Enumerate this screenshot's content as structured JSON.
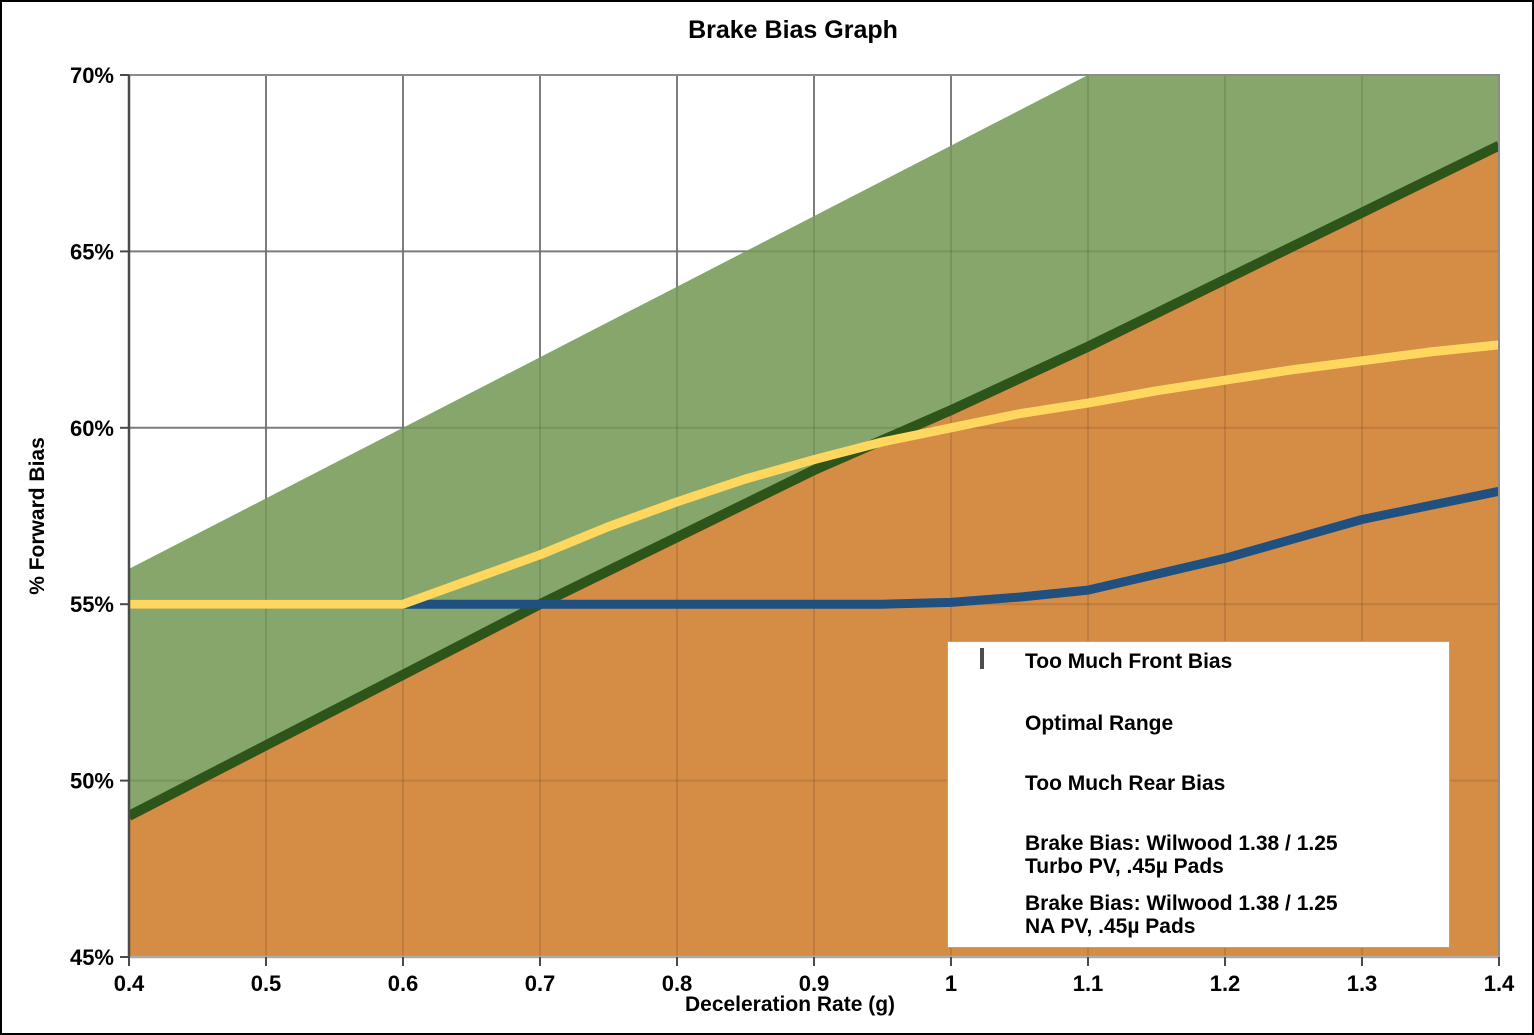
{
  "title": "Brake Bias Graph",
  "chart_data": {
    "type": "area",
    "title": "Brake Bias Graph",
    "xlabel": "Deceleration Rate (g)",
    "ylabel": "% Forward Bias",
    "xlim": [
      0.4,
      1.4
    ],
    "ylim": [
      45,
      70
    ],
    "grid": true,
    "legend_position": "bottom-right",
    "x_ticks": [
      0.4,
      0.5,
      0.6,
      0.7,
      0.8,
      0.9,
      1.0,
      1.1,
      1.2,
      1.3,
      1.4
    ],
    "x_tick_labels": [
      "0.4",
      "0.5",
      "0.6",
      "0.7",
      "0.8",
      "0.9",
      "1",
      "1.1",
      "1.2",
      "1.3",
      "1.4"
    ],
    "y_ticks": [
      45,
      50,
      55,
      60,
      65,
      70
    ],
    "y_tick_labels": [
      "45%",
      "50%",
      "55%",
      "60%",
      "65%",
      "70%"
    ],
    "area_x": [
      0.4,
      0.5,
      0.6,
      0.7,
      0.8,
      0.9,
      1.0,
      1.1,
      1.2,
      1.3,
      1.4
    ],
    "areas": {
      "too_much_front_bias_region": "above optimal_upper (white)",
      "optimal_upper": [
        56.0,
        58.0,
        60.0,
        62.0,
        64.0,
        66.0,
        68.0,
        70.0,
        70.0,
        70.0,
        70.0
      ],
      "optimal_lower": [
        49.0,
        51.0,
        53.0,
        55.0,
        56.9,
        58.8,
        60.5,
        62.3,
        64.2,
        66.1,
        68.0
      ],
      "too_much_rear_bias_region": "below optimal_lower (orange)"
    },
    "series": [
      {
        "name": "Brake Bias: Wilwood 1.38 / 1.25 Turbo PV, .45µ Pads",
        "color": "#1F5080",
        "x": [
          0.4,
          0.5,
          0.6,
          0.7,
          0.8,
          0.9,
          0.95,
          1.0,
          1.05,
          1.1,
          1.15,
          1.2,
          1.25,
          1.3,
          1.35,
          1.4
        ],
        "values": [
          55.0,
          55.0,
          55.0,
          55.0,
          55.0,
          55.0,
          55.0,
          55.05,
          55.2,
          55.4,
          55.85,
          56.3,
          56.85,
          57.4,
          57.8,
          58.2
        ]
      },
      {
        "name": "Brake Bias: Wilwood 1.38 / 1.25 NA PV, .45µ Pads",
        "color": "#FFD75E",
        "x": [
          0.4,
          0.5,
          0.6,
          0.65,
          0.7,
          0.75,
          0.8,
          0.85,
          0.9,
          0.95,
          1.0,
          1.05,
          1.1,
          1.15,
          1.2,
          1.25,
          1.3,
          1.35,
          1.4
        ],
        "values": [
          55.0,
          55.0,
          55.0,
          55.7,
          56.4,
          57.2,
          57.9,
          58.55,
          59.1,
          59.6,
          60.0,
          60.4,
          60.7,
          61.05,
          61.35,
          61.65,
          61.9,
          62.15,
          62.35
        ]
      }
    ]
  },
  "colors": {
    "optimal_area_fill": "#86A66B",
    "rear_bias_area_fill": "#D58C44",
    "optimal_boundary_line": "#2E5519",
    "gridline": "#8C8C8C",
    "axis_line": "#4A4A4A",
    "bottom_axis_line": "#ABABAB",
    "legend_border": "#A6A6A6",
    "legend_rear_bias_swatch": "#F2A166",
    "legend_optimal_swatch": "#83A35F"
  },
  "legend": {
    "items": [
      {
        "label": "Too Much Front Bias",
        "swatch": "outlined-box",
        "color": "#FFFFFF"
      },
      {
        "label": "Optimal Range",
        "swatch": "box",
        "color": "#83A35F"
      },
      {
        "label": "Too Much Rear Bias",
        "swatch": "box",
        "color": "#F2A166"
      },
      {
        "label": "Brake Bias: Wilwood 1.38 / 1.25\nTurbo PV, .45µ Pads",
        "swatch": "line",
        "color": "#1F5080"
      },
      {
        "label": "Brake Bias: Wilwood 1.38 / 1.25\nNA PV, .45µ Pads",
        "swatch": "line",
        "color": "#FFD75E"
      }
    ]
  }
}
